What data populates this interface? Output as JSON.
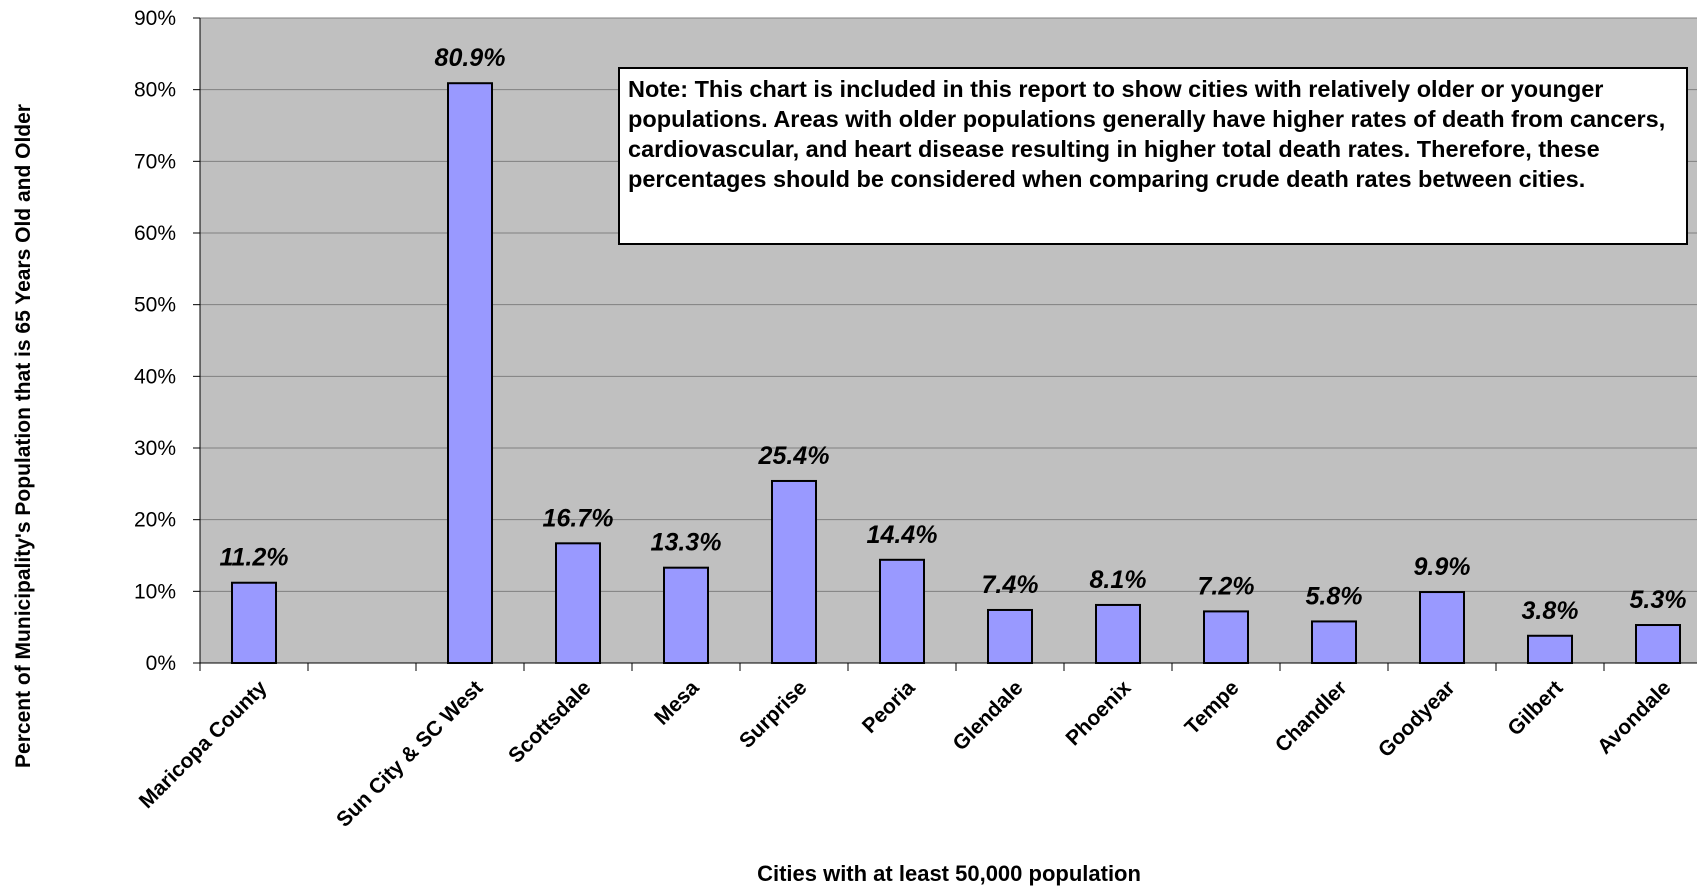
{
  "chart_data": {
    "type": "bar",
    "title": "",
    "xlabel": "Cities with at least 50,000 population",
    "ylabel": "Percent of Municipality's Population that is 65 Years Old and Older",
    "ylim": [
      0,
      90
    ],
    "yticks": [
      "0%",
      "10%",
      "20%",
      "30%",
      "40%",
      "50%",
      "60%",
      "70%",
      "80%",
      "90%"
    ],
    "categories": [
      "Maricopa County",
      "",
      "Sun City & SC West",
      "Scottsdale",
      "Mesa",
      "Surprise",
      "Peoria",
      "Glendale",
      "Phoenix",
      "Tempe",
      "Chandler",
      "Goodyear",
      "Gilbert",
      "Avondale"
    ],
    "values": [
      11.2,
      null,
      80.9,
      16.7,
      13.3,
      25.4,
      14.4,
      7.4,
      8.1,
      7.2,
      5.8,
      9.9,
      3.8,
      5.3
    ],
    "data_labels": [
      "11.2%",
      "",
      "80.9%",
      "16.7%",
      "13.3%",
      "25.4%",
      "14.4%",
      "7.4%",
      "8.1%",
      "7.2%",
      "5.8%",
      "9.9%",
      "3.8%",
      "5.3%"
    ],
    "grid": true,
    "legend": "none",
    "bar_color": "#9999ff",
    "plot_background": "#c0c0c0",
    "annotation": "Note: This chart is included in this report to show cities with relatively older or younger populations.  Areas with older populations generally have higher rates of death from cancers, cardiovascular, and heart disease resulting in higher total death rates.  Therefore, these percentages should be considered when comparing crude death rates between cities."
  }
}
